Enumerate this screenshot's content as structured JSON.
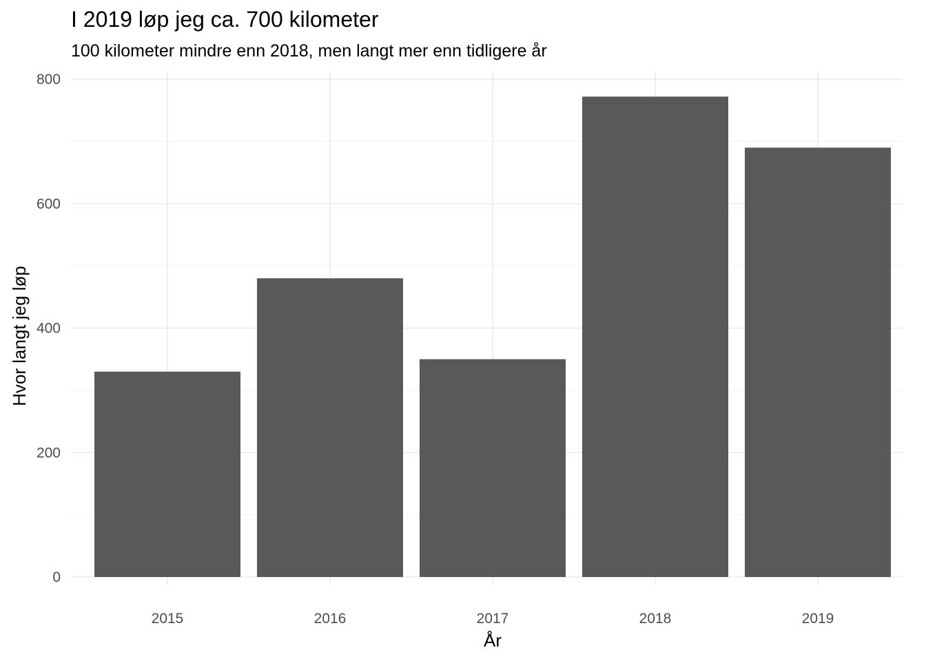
{
  "chart_data": {
    "type": "bar",
    "title": "I 2019 løp jeg ca. 700 kilometer",
    "subtitle": "100 kilometer mindre enn 2018, men langt mer enn tidligere år",
    "xlabel": "År",
    "ylabel": "Hvor langt jeg løp",
    "categories": [
      "2015",
      "2016",
      "2017",
      "2018",
      "2019"
    ],
    "values": [
      330,
      480,
      350,
      772,
      690
    ],
    "ylim": [
      0,
      800
    ],
    "yticks": [
      0,
      200,
      400,
      600,
      800
    ],
    "grid": true,
    "bar_color": "#595959",
    "grid_major_color": "#ebebeb",
    "grid_minor_color": "#f4f4f4"
  }
}
